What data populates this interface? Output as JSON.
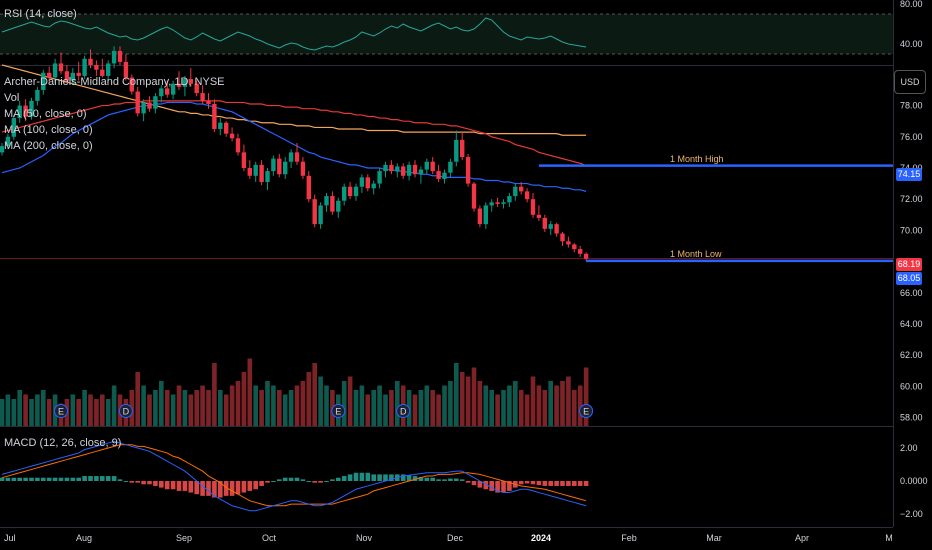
{
  "rsi": {
    "label": "RSI (14, close)",
    "ticks": [
      "80.00",
      "40.00"
    ],
    "values": [
      52,
      54,
      56,
      58,
      60,
      62,
      60,
      58,
      57,
      61,
      63,
      62,
      60,
      58,
      56,
      55,
      57,
      54,
      51,
      49,
      47,
      48,
      45,
      44,
      46,
      49,
      52,
      55,
      57,
      54,
      50,
      46,
      44,
      47,
      51,
      48,
      45,
      43,
      46,
      49,
      52,
      50,
      48,
      45,
      43,
      40,
      38,
      36,
      39,
      41,
      40,
      37,
      35,
      34,
      36,
      38,
      37,
      39,
      42,
      44,
      47,
      52,
      50,
      48,
      51,
      55,
      58,
      56,
      60,
      57,
      55,
      53,
      56,
      59,
      61,
      58,
      55,
      57,
      54,
      53,
      55,
      60,
      66,
      64,
      58,
      52,
      48,
      46,
      44,
      47,
      46,
      45,
      46,
      48,
      45,
      42,
      40,
      39,
      38,
      37
    ]
  },
  "price": {
    "title": "Archer-Daniels-Midland Company, 1D, NYSE",
    "indicators": [
      "Vol",
      "MA (50, close, 0)",
      "MA (100, close, 0)",
      "MA (200, close, 0)"
    ],
    "currency": "USD",
    "ticks": [
      "78.00",
      "76.00",
      "74.00",
      "72.00",
      "70.00",
      "66.00",
      "64.00",
      "62.00",
      "60.00",
      "58.00"
    ],
    "ylim": [
      57.4,
      80.6
    ],
    "last_price": "68.19",
    "high_price": "74.15",
    "low_price": "68.05",
    "high_label": "1 Month High",
    "low_label": "1 Month Low"
  },
  "chart_data": {
    "type": "candlestick",
    "candles": [
      [
        75.0,
        75.6,
        74.8,
        75.4
      ],
      [
        75.4,
        76.2,
        75.2,
        76.0
      ],
      [
        76.0,
        77.4,
        75.8,
        77.2
      ],
      [
        77.2,
        78.3,
        76.9,
        78.0
      ],
      [
        78.0,
        78.4,
        77.0,
        77.3
      ],
      [
        77.3,
        78.5,
        77.1,
        78.3
      ],
      [
        78.3,
        79.2,
        78.0,
        79.0
      ],
      [
        79.0,
        80.3,
        78.7,
        80.1
      ],
      [
        80.1,
        80.5,
        79.5,
        79.8
      ],
      [
        79.8,
        81.0,
        79.4,
        80.7
      ],
      [
        80.7,
        81.4,
        80.0,
        80.2
      ],
      [
        80.2,
        80.6,
        79.4,
        79.6
      ],
      [
        79.6,
        80.4,
        79.3,
        80.1
      ],
      [
        80.1,
        80.8,
        79.6,
        79.9
      ],
      [
        79.9,
        81.2,
        79.7,
        81.0
      ],
      [
        81.0,
        81.6,
        80.4,
        80.6
      ],
      [
        80.6,
        80.9,
        79.9,
        80.3
      ],
      [
        80.3,
        81.0,
        79.8,
        79.9
      ],
      [
        79.9,
        80.9,
        79.6,
        80.7
      ],
      [
        80.7,
        81.8,
        80.4,
        81.5
      ],
      [
        81.5,
        81.8,
        80.6,
        80.8
      ],
      [
        80.8,
        81.3,
        79.6,
        79.8
      ],
      [
        79.8,
        80.0,
        78.7,
        78.9
      ],
      [
        78.9,
        79.2,
        77.3,
        77.5
      ],
      [
        77.5,
        78.4,
        77.0,
        78.2
      ],
      [
        78.2,
        78.6,
        77.6,
        77.8
      ],
      [
        77.8,
        78.8,
        77.5,
        78.6
      ],
      [
        78.6,
        79.3,
        78.2,
        79.1
      ],
      [
        79.1,
        79.6,
        78.5,
        78.7
      ],
      [
        78.7,
        79.6,
        78.4,
        79.4
      ],
      [
        79.4,
        80.2,
        79.0,
        79.2
      ],
      [
        79.2,
        79.9,
        78.6,
        79.7
      ],
      [
        79.7,
        80.4,
        79.2,
        79.4
      ],
      [
        79.4,
        79.6,
        78.6,
        78.8
      ],
      [
        78.8,
        79.3,
        78.1,
        78.3
      ],
      [
        78.3,
        78.8,
        77.8,
        78.1
      ],
      [
        78.1,
        78.4,
        76.3,
        76.5
      ],
      [
        76.5,
        77.2,
        76.1,
        76.9
      ],
      [
        76.9,
        77.0,
        76.0,
        76.2
      ],
      [
        76.2,
        76.6,
        75.7,
        75.9
      ],
      [
        75.9,
        76.2,
        74.8,
        75.0
      ],
      [
        75.0,
        75.5,
        73.8,
        74.0
      ],
      [
        74.0,
        74.5,
        73.3,
        73.5
      ],
      [
        73.5,
        74.4,
        73.1,
        74.2
      ],
      [
        74.2,
        74.5,
        72.9,
        73.1
      ],
      [
        73.1,
        74.0,
        72.6,
        73.8
      ],
      [
        73.8,
        74.8,
        73.5,
        74.6
      ],
      [
        74.6,
        74.9,
        73.4,
        73.6
      ],
      [
        73.6,
        74.7,
        73.3,
        74.4
      ],
      [
        74.4,
        75.2,
        74.0,
        75.0
      ],
      [
        75.0,
        75.6,
        74.2,
        74.4
      ],
      [
        74.4,
        74.7,
        73.3,
        73.5
      ],
      [
        73.5,
        73.8,
        71.8,
        72.0
      ],
      [
        72.0,
        72.3,
        70.2,
        70.4
      ],
      [
        70.4,
        71.8,
        70.1,
        71.6
      ],
      [
        71.6,
        72.4,
        71.2,
        72.2
      ],
      [
        72.2,
        72.5,
        71.0,
        71.2
      ],
      [
        71.2,
        72.1,
        70.8,
        71.9
      ],
      [
        71.9,
        73.0,
        71.6,
        72.8
      ],
      [
        72.8,
        73.1,
        72.0,
        72.2
      ],
      [
        72.2,
        73.0,
        71.9,
        72.8
      ],
      [
        72.8,
        73.6,
        72.4,
        73.4
      ],
      [
        73.4,
        73.6,
        72.5,
        72.7
      ],
      [
        72.7,
        73.2,
        72.3,
        73.0
      ],
      [
        73.0,
        74.0,
        72.7,
        73.8
      ],
      [
        73.8,
        74.4,
        73.4,
        74.2
      ],
      [
        74.2,
        74.5,
        73.6,
        73.8
      ],
      [
        73.8,
        74.3,
        73.4,
        74.1
      ],
      [
        74.1,
        74.3,
        73.3,
        73.5
      ],
      [
        73.5,
        74.4,
        73.2,
        74.2
      ],
      [
        74.2,
        74.5,
        73.4,
        73.6
      ],
      [
        73.6,
        74.1,
        73.0,
        73.9
      ],
      [
        73.9,
        74.6,
        73.6,
        74.4
      ],
      [
        74.4,
        74.7,
        73.6,
        73.8
      ],
      [
        73.8,
        74.2,
        73.1,
        73.3
      ],
      [
        73.3,
        73.9,
        73.0,
        73.7
      ],
      [
        73.7,
        74.6,
        73.4,
        74.4
      ],
      [
        74.4,
        76.4,
        74.1,
        75.8
      ],
      [
        75.8,
        76.3,
        74.5,
        74.7
      ],
      [
        74.7,
        74.9,
        72.8,
        73.0
      ],
      [
        73.0,
        73.1,
        71.2,
        71.4
      ],
      [
        71.4,
        71.6,
        70.2,
        70.4
      ],
      [
        70.4,
        71.8,
        70.1,
        71.6
      ],
      [
        71.6,
        72.0,
        71.2,
        71.8
      ],
      [
        71.8,
        72.1,
        71.5,
        71.7
      ],
      [
        71.7,
        72.0,
        71.4,
        71.8
      ],
      [
        71.8,
        72.4,
        71.5,
        72.2
      ],
      [
        72.2,
        73.0,
        71.9,
        72.8
      ],
      [
        72.8,
        73.1,
        72.3,
        72.5
      ],
      [
        72.5,
        72.7,
        71.8,
        72.0
      ],
      [
        72.0,
        72.4,
        70.8,
        71.0
      ],
      [
        71.0,
        71.6,
        70.6,
        70.8
      ],
      [
        70.8,
        71.0,
        69.9,
        70.1
      ],
      [
        70.1,
        70.6,
        69.7,
        70.4
      ],
      [
        70.4,
        70.5,
        69.6,
        69.8
      ],
      [
        69.8,
        69.9,
        69.0,
        69.3
      ],
      [
        69.3,
        69.6,
        68.9,
        69.1
      ],
      [
        69.1,
        69.2,
        68.6,
        68.8
      ],
      [
        68.8,
        69.0,
        68.3,
        68.5
      ],
      [
        68.5,
        68.6,
        68.05,
        68.19
      ]
    ],
    "ma50": [
      73.7,
      73.8,
      73.9,
      74.0,
      74.2,
      74.4,
      74.6,
      74.8,
      75.1,
      75.4,
      75.6,
      75.9,
      76.2,
      76.4,
      76.6,
      76.8,
      77.0,
      77.2,
      77.4,
      77.5,
      77.6,
      77.7,
      77.8,
      77.9,
      78.0,
      78.0,
      78.1,
      78.1,
      78.2,
      78.2,
      78.2,
      78.2,
      78.2,
      78.1,
      78.1,
      78.0,
      77.9,
      77.8,
      77.7,
      77.6,
      77.4,
      77.2,
      77.0,
      76.8,
      76.6,
      76.4,
      76.2,
      76.0,
      75.8,
      75.6,
      75.4,
      75.2,
      75.0,
      74.9,
      74.7,
      74.6,
      74.5,
      74.4,
      74.3,
      74.2,
      74.2,
      74.1,
      74.0,
      74.0,
      74.0,
      73.9,
      73.9,
      73.8,
      73.8,
      73.7,
      73.7,
      73.6,
      73.6,
      73.5,
      73.5,
      73.4,
      73.4,
      73.4,
      73.4,
      73.4,
      73.3,
      73.3,
      73.2,
      73.2,
      73.2,
      73.1,
      73.1,
      73.0,
      73.0,
      73.0,
      72.9,
      72.9,
      72.8,
      72.8,
      72.8,
      72.7,
      72.7,
      72.6,
      72.6,
      72.5
    ],
    "ma100": [
      76.3,
      76.4,
      76.5,
      76.6,
      76.7,
      76.8,
      76.9,
      77.0,
      77.1,
      77.2,
      77.3,
      77.4,
      77.5,
      77.6,
      77.7,
      77.8,
      77.9,
      78.0,
      78.0,
      78.1,
      78.1,
      78.2,
      78.2,
      78.2,
      78.3,
      78.3,
      78.3,
      78.3,
      78.3,
      78.3,
      78.3,
      78.3,
      78.3,
      78.3,
      78.3,
      78.3,
      78.3,
      78.3,
      78.2,
      78.2,
      78.2,
      78.2,
      78.1,
      78.1,
      78.1,
      78.0,
      78.0,
      78.0,
      77.9,
      77.9,
      77.9,
      77.8,
      77.8,
      77.8,
      77.7,
      77.7,
      77.6,
      77.6,
      77.5,
      77.5,
      77.4,
      77.4,
      77.3,
      77.3,
      77.2,
      77.2,
      77.1,
      77.1,
      77.0,
      77.0,
      76.9,
      76.9,
      76.9,
      76.8,
      76.8,
      76.8,
      76.7,
      76.7,
      76.6,
      76.5,
      76.4,
      76.3,
      76.2,
      76.0,
      75.9,
      75.8,
      75.7,
      75.5,
      75.4,
      75.3,
      75.2,
      75.0,
      74.9,
      74.8,
      74.7,
      74.6,
      74.5,
      74.4,
      74.3,
      74.15
    ],
    "ma200": [
      80.6,
      80.5,
      80.4,
      80.3,
      80.2,
      80.1,
      80.0,
      79.9,
      79.8,
      79.7,
      79.6,
      79.5,
      79.4,
      79.3,
      79.2,
      79.1,
      79.0,
      78.9,
      78.8,
      78.7,
      78.6,
      78.5,
      78.4,
      78.3,
      78.2,
      78.1,
      78.0,
      77.9,
      77.8,
      77.7,
      77.6,
      77.6,
      77.5,
      77.5,
      77.4,
      77.4,
      77.3,
      77.3,
      77.2,
      77.2,
      77.1,
      77.1,
      77.0,
      77.0,
      76.9,
      76.9,
      76.9,
      76.8,
      76.8,
      76.8,
      76.7,
      76.7,
      76.7,
      76.6,
      76.6,
      76.6,
      76.6,
      76.5,
      76.5,
      76.5,
      76.5,
      76.5,
      76.4,
      76.4,
      76.4,
      76.4,
      76.4,
      76.4,
      76.3,
      76.3,
      76.3,
      76.3,
      76.3,
      76.3,
      76.3,
      76.3,
      76.3,
      76.3,
      76.3,
      76.3,
      76.3,
      76.2,
      76.2,
      76.2,
      76.2,
      76.2,
      76.2,
      76.2,
      76.2,
      76.2,
      76.2,
      76.2,
      76.2,
      76.2,
      76.2,
      76.1,
      76.1,
      76.1,
      76.1,
      76.1
    ],
    "volume": [
      6,
      7,
      6,
      8,
      7,
      6,
      7,
      8,
      6,
      7,
      5,
      6,
      7,
      6,
      8,
      7,
      6,
      7,
      6,
      9,
      7,
      6,
      8,
      12,
      9,
      7,
      8,
      10,
      8,
      7,
      9,
      8,
      7,
      8,
      9,
      8,
      14,
      8,
      7,
      9,
      10,
      12,
      15,
      9,
      8,
      10,
      9,
      8,
      7,
      8,
      9,
      10,
      12,
      14,
      11,
      9,
      8,
      7,
      10,
      11,
      8,
      9,
      7,
      8,
      9,
      7,
      8,
      10,
      9,
      8,
      7,
      8,
      9,
      8,
      7,
      9,
      10,
      14,
      12,
      11,
      13,
      10,
      9,
      8,
      7,
      8,
      9,
      10,
      8,
      7,
      11,
      9,
      8,
      10,
      9,
      10,
      11,
      8,
      9,
      13
    ],
    "macd": [
      0.4,
      0.5,
      0.6,
      0.7,
      0.8,
      0.9,
      1.0,
      1.1,
      1.2,
      1.3,
      1.4,
      1.5,
      1.6,
      1.7,
      1.9,
      2.0,
      2.1,
      2.2,
      2.3,
      2.4,
      2.3,
      2.2,
      2.1,
      2.0,
      1.9,
      1.8,
      1.6,
      1.4,
      1.2,
      1.0,
      0.8,
      0.6,
      0.3,
      0.0,
      -0.3,
      -0.6,
      -0.9,
      -1.1,
      -1.3,
      -1.5,
      -1.6,
      -1.7,
      -1.8,
      -1.8,
      -1.7,
      -1.6,
      -1.5,
      -1.4,
      -1.3,
      -1.2,
      -1.2,
      -1.3,
      -1.4,
      -1.5,
      -1.5,
      -1.4,
      -1.3,
      -1.1,
      -0.9,
      -0.7,
      -0.5,
      -0.4,
      -0.3,
      -0.2,
      -0.1,
      0.0,
      0.1,
      0.2,
      0.3,
      0.35,
      0.4,
      0.45,
      0.5,
      0.5,
      0.5,
      0.5,
      0.55,
      0.6,
      0.6,
      0.4,
      0.2,
      0.0,
      -0.2,
      -0.4,
      -0.6,
      -0.7,
      -0.7,
      -0.6,
      -0.5,
      -0.5,
      -0.6,
      -0.7,
      -0.8,
      -0.9,
      -1.0,
      -1.1,
      -1.2,
      -1.3,
      -1.4,
      -1.5
    ],
    "signal": [
      0.2,
      0.3,
      0.4,
      0.5,
      0.6,
      0.7,
      0.8,
      0.9,
      1.0,
      1.1,
      1.2,
      1.3,
      1.4,
      1.5,
      1.6,
      1.7,
      1.8,
      1.9,
      2.0,
      2.1,
      2.2,
      2.2,
      2.2,
      2.1,
      2.1,
      2.0,
      1.9,
      1.8,
      1.7,
      1.5,
      1.4,
      1.2,
      1.0,
      0.8,
      0.6,
      0.3,
      0.1,
      -0.1,
      -0.4,
      -0.6,
      -0.8,
      -1.0,
      -1.2,
      -1.3,
      -1.4,
      -1.5,
      -1.5,
      -1.5,
      -1.5,
      -1.4,
      -1.4,
      -1.4,
      -1.4,
      -1.4,
      -1.4,
      -1.4,
      -1.4,
      -1.3,
      -1.2,
      -1.1,
      -1.0,
      -0.9,
      -0.8,
      -0.6,
      -0.5,
      -0.4,
      -0.3,
      -0.2,
      -0.1,
      0.0,
      0.1,
      0.2,
      0.3,
      0.3,
      0.4,
      0.4,
      0.4,
      0.45,
      0.5,
      0.5,
      0.45,
      0.4,
      0.3,
      0.2,
      0.1,
      0.0,
      -0.1,
      -0.2,
      -0.3,
      -0.35,
      -0.4,
      -0.45,
      -0.5,
      -0.6,
      -0.7,
      -0.8,
      -0.9,
      -1.0,
      -1.1,
      -1.2
    ],
    "histogram": [
      0.2,
      0.2,
      0.2,
      0.2,
      0.2,
      0.2,
      0.2,
      0.2,
      0.2,
      0.2,
      0.2,
      0.2,
      0.2,
      0.2,
      0.3,
      0.3,
      0.3,
      0.3,
      0.3,
      0.3,
      0.1,
      0.0,
      -0.1,
      -0.1,
      -0.2,
      -0.2,
      -0.3,
      -0.4,
      -0.5,
      -0.5,
      -0.6,
      -0.6,
      -0.7,
      -0.8,
      -0.9,
      -0.9,
      -1.0,
      -1.0,
      -0.9,
      -0.9,
      -0.8,
      -0.7,
      -0.6,
      -0.5,
      -0.3,
      -0.1,
      0.0,
      0.1,
      0.2,
      0.2,
      0.2,
      0.1,
      0.0,
      -0.1,
      -0.1,
      0.0,
      0.1,
      0.2,
      0.3,
      0.4,
      0.5,
      0.5,
      0.5,
      0.4,
      0.4,
      0.4,
      0.4,
      0.4,
      0.4,
      0.35,
      0.3,
      0.25,
      0.2,
      0.2,
      0.1,
      0.1,
      0.15,
      0.15,
      0.1,
      -0.1,
      -0.25,
      -0.4,
      -0.5,
      -0.6,
      -0.7,
      -0.7,
      -0.6,
      -0.4,
      -0.2,
      -0.15,
      -0.2,
      -0.25,
      -0.3,
      -0.3,
      -0.3,
      -0.3,
      -0.3,
      -0.3,
      -0.3,
      -0.3
    ]
  },
  "macd": {
    "label": "MACD (12, 26, close, 9)",
    "ticks": [
      "2.00",
      "0.0000",
      "−2.00"
    ]
  },
  "xaxis": {
    "labels": [
      "Jul",
      "Aug",
      "Sep",
      "Oct",
      "Nov",
      "Dec",
      "2024",
      "Feb",
      "Mar",
      "Apr",
      "M"
    ]
  },
  "events": [
    "E",
    "D",
    "E",
    "D",
    "E"
  ],
  "colors": {
    "up": "#089981",
    "down": "#f23645",
    "ma50": "#2962ff",
    "ma100": "#e53935",
    "ma200": "#f5a55a",
    "level": "#2962ff",
    "rsi": "#26a69a"
  }
}
